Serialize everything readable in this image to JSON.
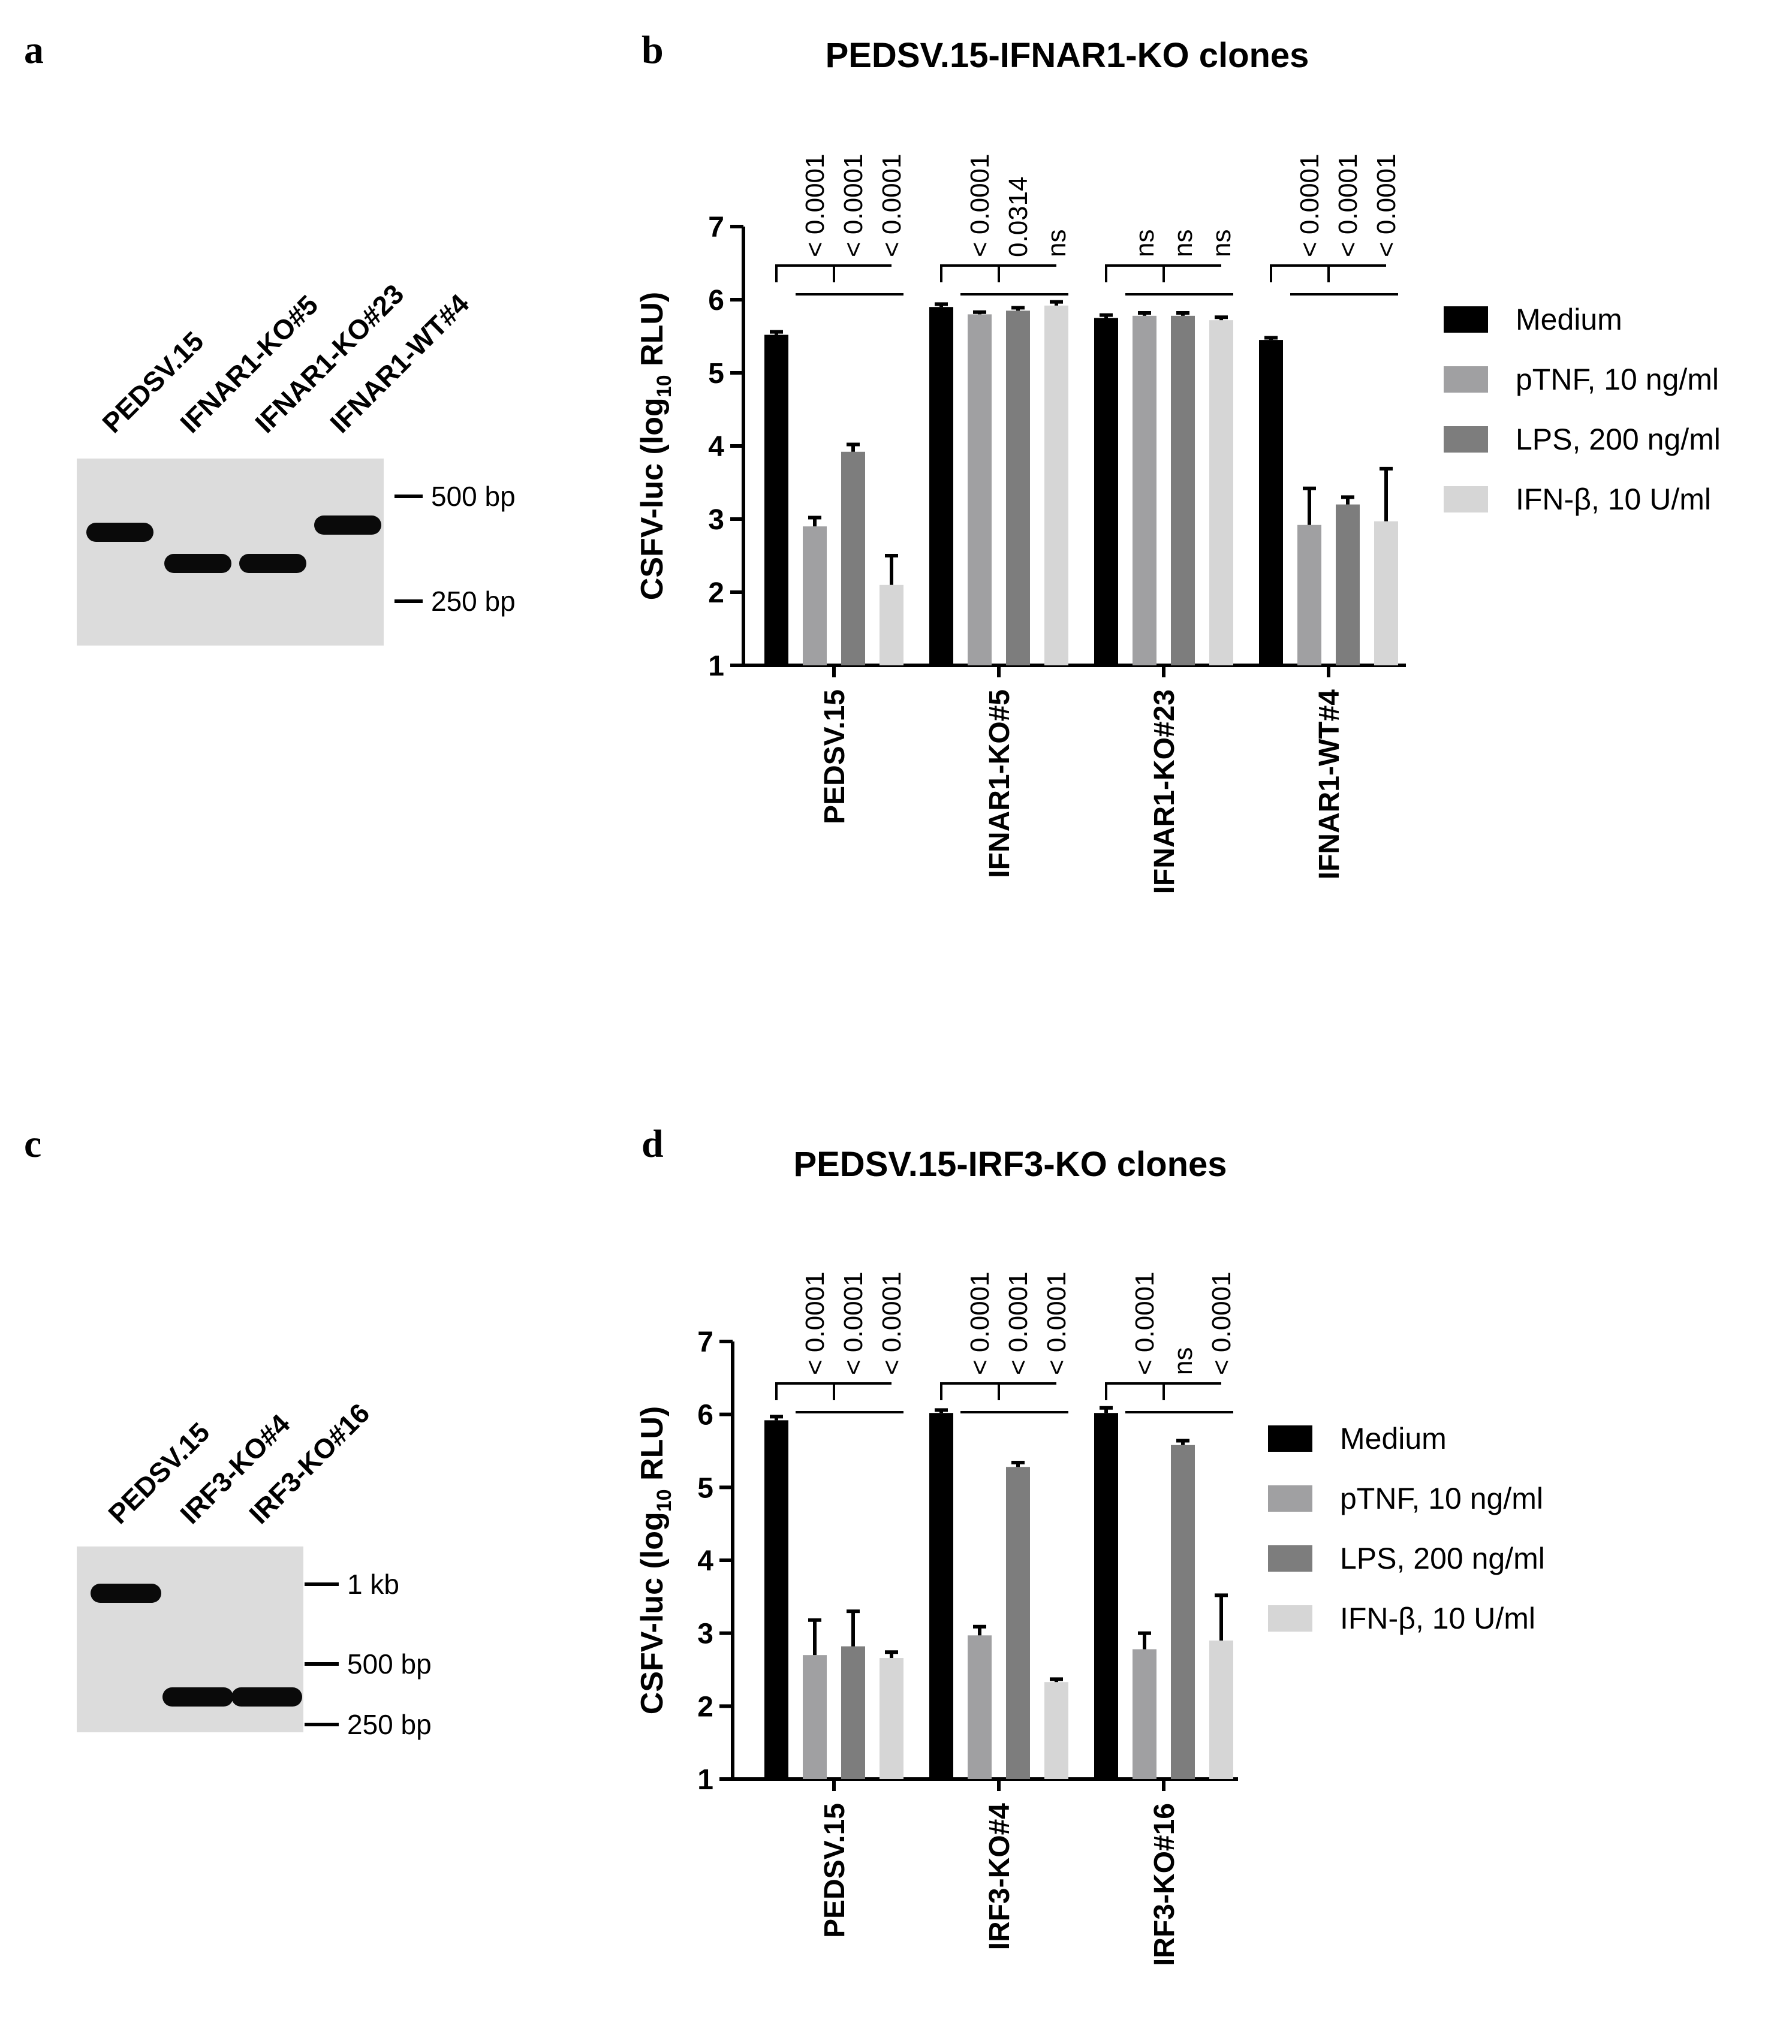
{
  "panels": {
    "a": {
      "letter": "a",
      "lanes": [
        "PEDSV.15",
        "IFNAR1-KO#5",
        "IFNAR1-KO#23",
        "IFNAR1-WT#4"
      ],
      "markers": [
        "500 bp",
        "250 bp"
      ]
    },
    "c": {
      "letter": "c",
      "lanes": [
        "PEDSV.15",
        "IRF3-KO#4",
        "IRF3-KO#16"
      ],
      "markers": [
        "1 kb",
        "500 bp",
        "250 bp"
      ]
    },
    "b": {
      "letter": "b"
    },
    "d": {
      "letter": "d"
    }
  },
  "colors": {
    "Medium": "#000000",
    "pTNF": "#a0a0a2",
    "LPS": "#7d7d7d",
    "IFN": "#d6d6d6",
    "gel_background": "#dcdcdc",
    "gel_band": "#0a0a0a"
  },
  "chart_data": [
    {
      "id": "b",
      "type": "bar",
      "title": "PEDSV.15-IFNAR1-KO clones",
      "ylabel_main": "CSFV-luc (log",
      "ylabel_sub": "10",
      "ylabel_end": " RLU)",
      "ylim": [
        1,
        7
      ],
      "yticks": [
        "1",
        "2",
        "3",
        "4",
        "5",
        "6",
        "7"
      ],
      "categories": [
        "PEDSV.15",
        "IFNAR1-KO#5",
        "IFNAR1-KO#23",
        "IFNAR1-WT#4"
      ],
      "series": [
        {
          "name": "Medium",
          "values": [
            5.52,
            5.9,
            5.75,
            5.45
          ],
          "errors": [
            0.04,
            0.04,
            0.04,
            0.03
          ]
        },
        {
          "name": "pTNF, 10 ng/ml",
          "values": [
            2.9,
            5.8,
            5.78,
            2.92
          ],
          "errors": [
            0.12,
            0.03,
            0.04,
            0.5
          ]
        },
        {
          "name": "LPS, 200 ng/ml",
          "values": [
            3.92,
            5.85,
            5.78,
            3.2
          ],
          "errors": [
            0.1,
            0.04,
            0.04,
            0.1
          ]
        },
        {
          "name": "IFN-β, 10 U/ml",
          "values": [
            2.1,
            5.92,
            5.72,
            2.97
          ],
          "errors": [
            0.4,
            0.05,
            0.04,
            0.72
          ]
        }
      ],
      "significance": [
        [
          "< 0.0001",
          "< 0.0001",
          "< 0.0001"
        ],
        [
          "< 0.0001",
          "0.0314",
          "ns"
        ],
        [
          "ns",
          "ns",
          "ns"
        ],
        [
          "< 0.0001",
          "< 0.0001",
          "< 0.0001"
        ]
      ],
      "legend_placement": "right",
      "grid": false
    },
    {
      "id": "d",
      "type": "bar",
      "title": "PEDSV.15-IRF3-KO clones",
      "ylabel_main": "CSFV-luc (log",
      "ylabel_sub": "10",
      "ylabel_end": " RLU)",
      "ylim": [
        1,
        7
      ],
      "yticks": [
        "1",
        "2",
        "3",
        "4",
        "5",
        "6",
        "7"
      ],
      "categories": [
        "PEDSV.15",
        "IRF3-KO#4",
        "IRF3-KO#16"
      ],
      "series": [
        {
          "name": "Medium",
          "values": [
            5.92,
            6.02,
            6.02
          ],
          "errors": [
            0.05,
            0.04,
            0.07
          ]
        },
        {
          "name": "pTNF, 10 ng/ml",
          "values": [
            2.7,
            2.97,
            2.78
          ],
          "errors": [
            0.48,
            0.12,
            0.22
          ]
        },
        {
          "name": "LPS, 200 ng/ml",
          "values": [
            2.82,
            5.28,
            5.58
          ],
          "errors": [
            0.48,
            0.06,
            0.06
          ]
        },
        {
          "name": "IFN-β, 10 U/ml",
          "values": [
            2.66,
            2.33,
            2.9
          ],
          "errors": [
            0.08,
            0.04,
            0.62
          ]
        }
      ],
      "significance": [
        [
          "< 0.0001",
          "< 0.0001",
          "< 0.0001"
        ],
        [
          "< 0.0001",
          "< 0.0001",
          "< 0.0001"
        ],
        [
          "< 0.0001",
          "ns",
          "< 0.0001"
        ]
      ],
      "legend_placement": "right",
      "grid": false
    }
  ]
}
